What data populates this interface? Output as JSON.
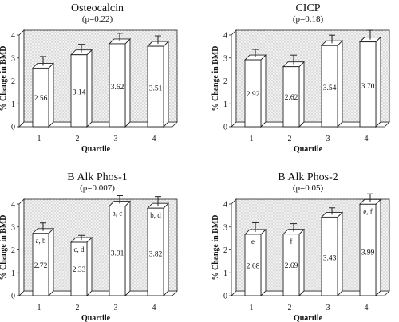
{
  "chart_data": [
    {
      "type": "bar",
      "title": "Osteocalcin",
      "subtitle": "(p=0.22)",
      "ylabel": "% Change in BMD",
      "xlabel": "Quartile",
      "categories": [
        "1",
        "2",
        "3",
        "4"
      ],
      "values": [
        2.56,
        3.14,
        3.62,
        3.51
      ],
      "value_labels": [
        "2.56",
        "3.14",
        "3.62",
        "3.51"
      ],
      "errors": [
        0.4,
        0.35,
        0.35,
        0.35
      ],
      "annotations": [
        "",
        "",
        "",
        ""
      ],
      "ylim": [
        0,
        4
      ],
      "yticks": [
        "0",
        "1",
        "2",
        "3",
        "4"
      ]
    },
    {
      "type": "bar",
      "title": "CICP",
      "subtitle": "(p=0.18)",
      "ylabel": "% Change in BMD",
      "xlabel": "Quartile",
      "categories": [
        "1",
        "2",
        "3",
        "4"
      ],
      "values": [
        2.92,
        2.62,
        3.54,
        3.7
      ],
      "value_labels": [
        "2.92",
        "2.62",
        "3.54",
        "3.70"
      ],
      "errors": [
        0.35,
        0.4,
        0.35,
        0.4
      ],
      "annotations": [
        "",
        "",
        "",
        ""
      ],
      "ylim": [
        0,
        4
      ],
      "yticks": [
        "0",
        "1",
        "2",
        "3",
        "4"
      ]
    },
    {
      "type": "bar",
      "title": "B Alk Phos-1",
      "subtitle": "(p=0.007)",
      "ylabel": "% Change in BMD",
      "xlabel": "Quartile",
      "categories": [
        "1",
        "2",
        "3",
        "4"
      ],
      "values": [
        2.72,
        2.33,
        3.91,
        3.82
      ],
      "value_labels": [
        "2.72",
        "2.33",
        "3.91",
        "3.82"
      ],
      "errors": [
        0.35,
        0.2,
        0.35,
        0.4
      ],
      "annotations": [
        "a, b",
        "c, d",
        "a, c",
        "b, d"
      ],
      "ylim": [
        0,
        4
      ],
      "yticks": [
        "0",
        "1",
        "2",
        "3",
        "4"
      ]
    },
    {
      "type": "bar",
      "title": "B Alk Phos-2",
      "subtitle": "(p=0.05)",
      "ylabel": "% Change in BMD",
      "xlabel": "Quartile",
      "categories": [
        "1",
        "2",
        "3",
        "4"
      ],
      "values": [
        2.68,
        2.69,
        3.43,
        3.99
      ],
      "value_labels": [
        "2.68",
        "2.69",
        "3.43",
        "3.99"
      ],
      "errors": [
        0.4,
        0.35,
        0.3,
        0.35
      ],
      "annotations": [
        "e",
        "f",
        "",
        "e, f"
      ],
      "ylim": [
        0,
        4
      ],
      "yticks": [
        "0",
        "1",
        "2",
        "3",
        "4"
      ]
    }
  ]
}
